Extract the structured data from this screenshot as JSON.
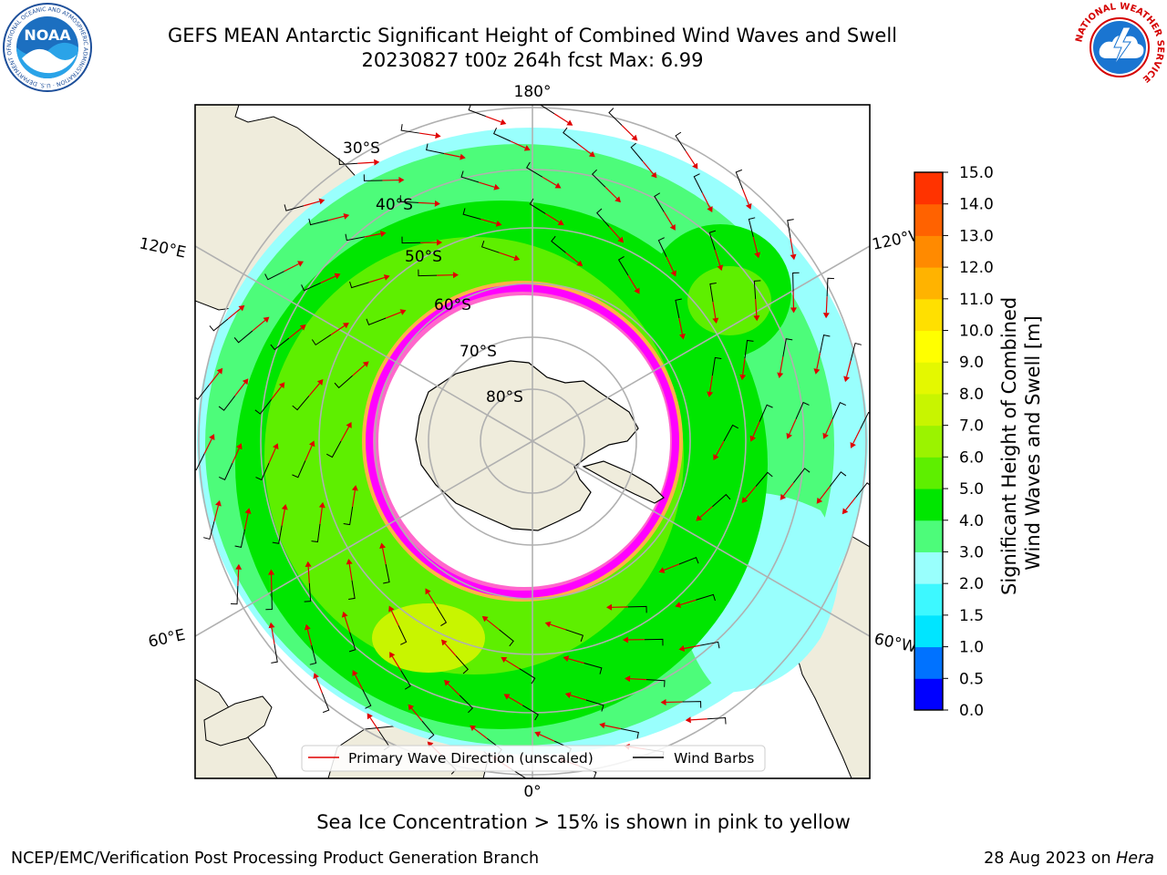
{
  "title": {
    "line1": "GEFS MEAN Antarctic Significant Height of Combined Wind Waves and Swell",
    "line2": "20230827 t00z 264h fcst   Max: 6.99"
  },
  "map": {
    "projection": "south-polar-stereographic",
    "meridian_labels": {
      "top": "180°",
      "bottom": "0°",
      "left_upper": "120°E",
      "left_lower": "60°E",
      "right_upper": "120°W",
      "right_lower": "60°W"
    },
    "latitude_labels": [
      "30°S",
      "40°S",
      "50°S",
      "60°S",
      "70°S",
      "80°S"
    ],
    "land_color": "#efecdc",
    "ice_shelf_color": "#ffffff",
    "sea_ice_colors": [
      "#ff00ff",
      "#ff66cc",
      "#ffb347"
    ],
    "arrow_color": "#e00000",
    "barb_color": "#000000"
  },
  "legend": {
    "primary_wave": "Primary Wave Direction (unscaled)",
    "wind_barbs": "Wind Barbs"
  },
  "colorbar": {
    "label_line1": "Significant Height of Combined",
    "label_line2": "Wind Waves and Swell [m]",
    "ticks": [
      "15.0",
      "14.0",
      "13.0",
      "12.0",
      "11.0",
      "10.0",
      "9.0",
      "8.0",
      "7.0",
      "6.0",
      "5.0",
      "4.0",
      "3.0",
      "2.0",
      "1.5",
      "1.0",
      "0.5",
      "0.0"
    ],
    "colors": [
      "#0000ff",
      "#0072ff",
      "#00e5ff",
      "#3df8ff",
      "#99fffd",
      "#4dfc7a",
      "#00e600",
      "#5eef00",
      "#9bf300",
      "#c8f500",
      "#e4f800",
      "#ffff00",
      "#ffe000",
      "#ffb300",
      "#ff8a00",
      "#ff6200",
      "#ff3300",
      "#ff0000"
    ]
  },
  "footer": {
    "caption": "Sea Ice Concentration > 15% is shown in pink to yellow",
    "left": "NCEP/EMC/Verification Post Processing Product Generation Branch",
    "right_date": "28 Aug 2023 on ",
    "right_host": "Hera"
  },
  "logos": {
    "noaa_text": "NOAA",
    "noaa_ring": "NATIONAL OCEANIC AND ATMOSPHERIC ADMINISTRATION · U.S. DEPARTMENT OF COMMERCE ·",
    "nws_ring": "NATIONAL WEATHER SERVICE"
  }
}
